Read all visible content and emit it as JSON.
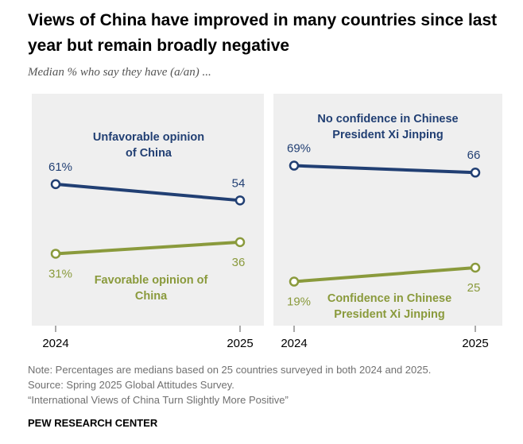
{
  "title": "Views of China have improved in many countries since last year but remain broadly negative",
  "subtitle": "Median % who say they have (a/an) ...",
  "notes": [
    "Note: Percentages are medians based on 25 countries surveyed in both 2024 and 2025.",
    "Source: Spring 2025 Global Attitudes Survey.",
    "“International Views of China Turn Slightly More Positive”"
  ],
  "footer": "PEW RESEARCH CENTER",
  "chart_data": [
    {
      "type": "line",
      "categories": [
        "2024",
        "2025"
      ],
      "ylim": [
        0,
        100
      ],
      "series": [
        {
          "name": "Unfavorable opinion of China",
          "color": "#213f73",
          "values": [
            61,
            54
          ],
          "value_labels": [
            "61%",
            "54"
          ]
        },
        {
          "name": "Favorable opinion of China",
          "color": "#8a9a3c",
          "values": [
            31,
            36
          ],
          "value_labels": [
            "31%",
            "36"
          ]
        }
      ]
    },
    {
      "type": "line",
      "categories": [
        "2024",
        "2025"
      ],
      "ylim": [
        0,
        100
      ],
      "series": [
        {
          "name": "No confidence in Chinese President Xi Jinping",
          "color": "#213f73",
          "values": [
            69,
            66
          ],
          "value_labels": [
            "69%",
            "66"
          ]
        },
        {
          "name": "Confidence in Chinese President Xi Jinping",
          "color": "#8a9a3c",
          "values": [
            19,
            25
          ],
          "value_labels": [
            "19%",
            "25"
          ]
        }
      ]
    }
  ]
}
